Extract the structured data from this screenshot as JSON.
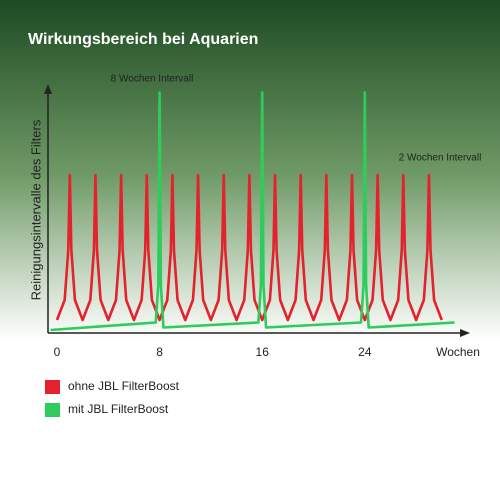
{
  "chart_data": {
    "type": "line",
    "title": "Wirkungsbereich bei Aquarien",
    "y_label": "Reinigungsintervalle des Filters",
    "x_label": "Wochen",
    "annotations": [
      "8 Wochen Intervall",
      "2 Wochen Intervall"
    ],
    "xlim": [
      -0.7,
      32.2
    ],
    "ylim": [
      0,
      100
    ],
    "xticks": [
      0,
      8,
      16,
      24
    ],
    "series": [
      {
        "name": "ohne JBL FilterBoost",
        "color": "#e3222e",
        "x": [
          0,
          0.6,
          0.88,
          1,
          1.12,
          1.4,
          2,
          2.6,
          2.88,
          3,
          3.12,
          3.4,
          4,
          4.6,
          4.88,
          5,
          5.12,
          5.4,
          6,
          6.6,
          6.88,
          7,
          7.12,
          7.4,
          8,
          8.6,
          8.88,
          9,
          9.12,
          9.4,
          10,
          10.6,
          10.88,
          11,
          11.12,
          11.4,
          12,
          12.6,
          12.88,
          13,
          13.12,
          13.4,
          14,
          14.6,
          14.88,
          15,
          15.12,
          15.4,
          16,
          16.6,
          16.88,
          17,
          17.12,
          17.4,
          18,
          18.6,
          18.88,
          19,
          19.12,
          19.4,
          20,
          20.6,
          20.88,
          21,
          21.12,
          21.4,
          22,
          22.6,
          22.88,
          23,
          23.12,
          23.4,
          24,
          24.6,
          24.88,
          25,
          25.12,
          25.4,
          26,
          26.6,
          26.88,
          27,
          27.12,
          27.4,
          28,
          28.6,
          28.88,
          29,
          29.12,
          29.4,
          30
        ],
        "values": [
          6,
          14,
          34,
          64,
          34,
          14,
          6,
          14,
          34,
          64,
          34,
          14,
          6,
          14,
          34,
          64,
          34,
          14,
          6,
          14,
          34,
          64,
          34,
          14,
          6,
          14,
          34,
          64,
          34,
          14,
          6,
          14,
          34,
          64,
          34,
          14,
          6,
          14,
          34,
          64,
          34,
          14,
          6,
          14,
          34,
          64,
          34,
          14,
          6,
          14,
          34,
          64,
          34,
          14,
          6,
          14,
          34,
          64,
          34,
          14,
          6,
          14,
          34,
          64,
          34,
          14,
          6,
          14,
          34,
          64,
          34,
          14,
          6,
          14,
          34,
          64,
          34,
          14,
          6,
          14,
          34,
          64,
          34,
          14,
          6,
          14,
          34,
          64,
          34,
          14,
          6
        ]
      },
      {
        "name": "mit JBL FilterBoost",
        "color": "#2ecc5c",
        "x": [
          -0.5,
          7.7,
          7.9,
          8,
          8.1,
          8.3,
          15.7,
          15.9,
          16,
          16.1,
          16.3,
          23.7,
          23.9,
          24,
          24.1,
          24.3,
          31
        ],
        "values": [
          2,
          5,
          20,
          97,
          20,
          3,
          5,
          20,
          97,
          20,
          3,
          5,
          20,
          97,
          20,
          3,
          5
        ]
      }
    ]
  }
}
